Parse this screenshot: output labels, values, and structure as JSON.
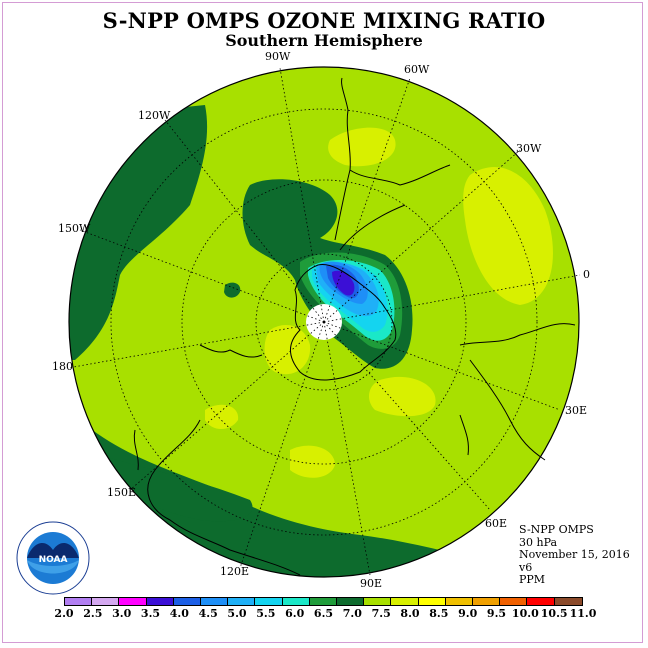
{
  "title": "S-NPP OMPS OZONE MIXING RATIO",
  "subtitle": "Southern Hemisphere",
  "longitude_labels": [
    {
      "text": "90W",
      "name": "lon-label-90w"
    },
    {
      "text": "60W",
      "name": "lon-label-60w"
    },
    {
      "text": "120W",
      "name": "lon-label-120w"
    },
    {
      "text": "30W",
      "name": "lon-label-30w"
    },
    {
      "text": "150W",
      "name": "lon-label-150w"
    },
    {
      "text": "0",
      "name": "lon-label-0"
    },
    {
      "text": "180",
      "name": "lon-label-180"
    },
    {
      "text": "30E",
      "name": "lon-label-30e"
    },
    {
      "text": "150E",
      "name": "lon-label-150e"
    },
    {
      "text": "60E",
      "name": "lon-label-60e"
    },
    {
      "text": "120E",
      "name": "lon-label-120e"
    },
    {
      "text": "90E",
      "name": "lon-label-90e"
    }
  ],
  "info": {
    "product": "S-NPP OMPS",
    "level": "30 hPa",
    "date": "November 15, 2016",
    "version": "v6",
    "units": "PPM"
  },
  "logo_text": "NOAA",
  "colorbar": {
    "ticks": [
      "2.0",
      "2.5",
      "3.0",
      "3.5",
      "4.0",
      "4.5",
      "5.0",
      "5.5",
      "6.0",
      "6.5",
      "7.0",
      "7.5",
      "8.0",
      "8.5",
      "9.0",
      "9.5",
      "10.0",
      "10.5",
      "11.0"
    ],
    "colors": [
      "#b27ff2",
      "#d4a8f0",
      "#ff00ff",
      "#3b0fd6",
      "#1c5fe6",
      "#1e8ff7",
      "#1fb0f7",
      "#14d4f0",
      "#1ae8c8",
      "#1f9c3a",
      "#0d6b2d",
      "#a8e000",
      "#d8f000",
      "#ffff00",
      "#f0c000",
      "#f0a000",
      "#f06000",
      "#ff0000",
      "#8b4a2a"
    ]
  },
  "colors": {
    "background_field": "#a8e000",
    "low_ozone_core": "#3b0fd6",
    "high_ozone_band": "#d8f000",
    "coast": "#000000"
  }
}
